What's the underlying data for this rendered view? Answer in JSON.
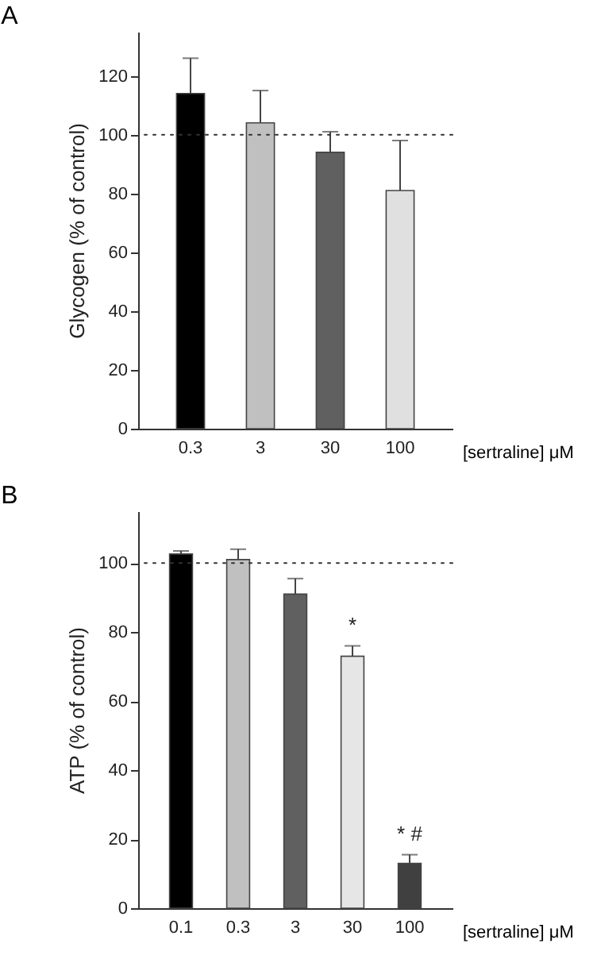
{
  "chart_data": [
    {
      "type": "bar",
      "title": "A",
      "xlabel": "[sertraline] μM",
      "ylabel": "Glycogen (% of control)",
      "categories": [
        "0.3",
        "3",
        "30",
        "100"
      ],
      "values": [
        114,
        104,
        94,
        81
      ],
      "colors": [
        "#000000",
        "#c0c0c0",
        "#606060",
        "#e0e0e0"
      ],
      "errors": [
        [
          114,
          126
        ],
        [
          104,
          115
        ],
        [
          94,
          101
        ],
        [
          81,
          98
        ]
      ],
      "ylim": [
        0,
        135
      ],
      "yticks": [
        0,
        20,
        40,
        60,
        80,
        100,
        120
      ],
      "ref_lines": [
        {
          "axis": "y",
          "value": 100,
          "line_style": "dotted"
        }
      ],
      "grid": false
    },
    {
      "type": "bar",
      "title": "B",
      "xlabel": "[sertraline] μM",
      "ylabel": "ATP (% of control)",
      "categories": [
        "0.1",
        "0.3",
        "3",
        "30",
        "100"
      ],
      "values": [
        102.6,
        101,
        91,
        73,
        13
      ],
      "colors": [
        "#000000",
        "#c0c0c0",
        "#606060",
        "#e6e6e6",
        "#404040"
      ],
      "errors": [
        [
          102.6,
          103.5
        ],
        [
          101,
          104
        ],
        [
          91,
          95.5
        ],
        [
          73,
          76
        ],
        [
          13,
          15.5
        ]
      ],
      "ylim": [
        0,
        115
      ],
      "yticks": [
        0,
        20,
        40,
        60,
        80,
        100
      ],
      "ref_lines": [
        {
          "axis": "y",
          "value": 100,
          "line_style": "dotted"
        }
      ],
      "annotations": [
        {
          "text": "*",
          "x": "30",
          "y": 76
        },
        {
          "text": "* #",
          "x": "100",
          "y": 15.5
        }
      ],
      "grid": false
    }
  ]
}
